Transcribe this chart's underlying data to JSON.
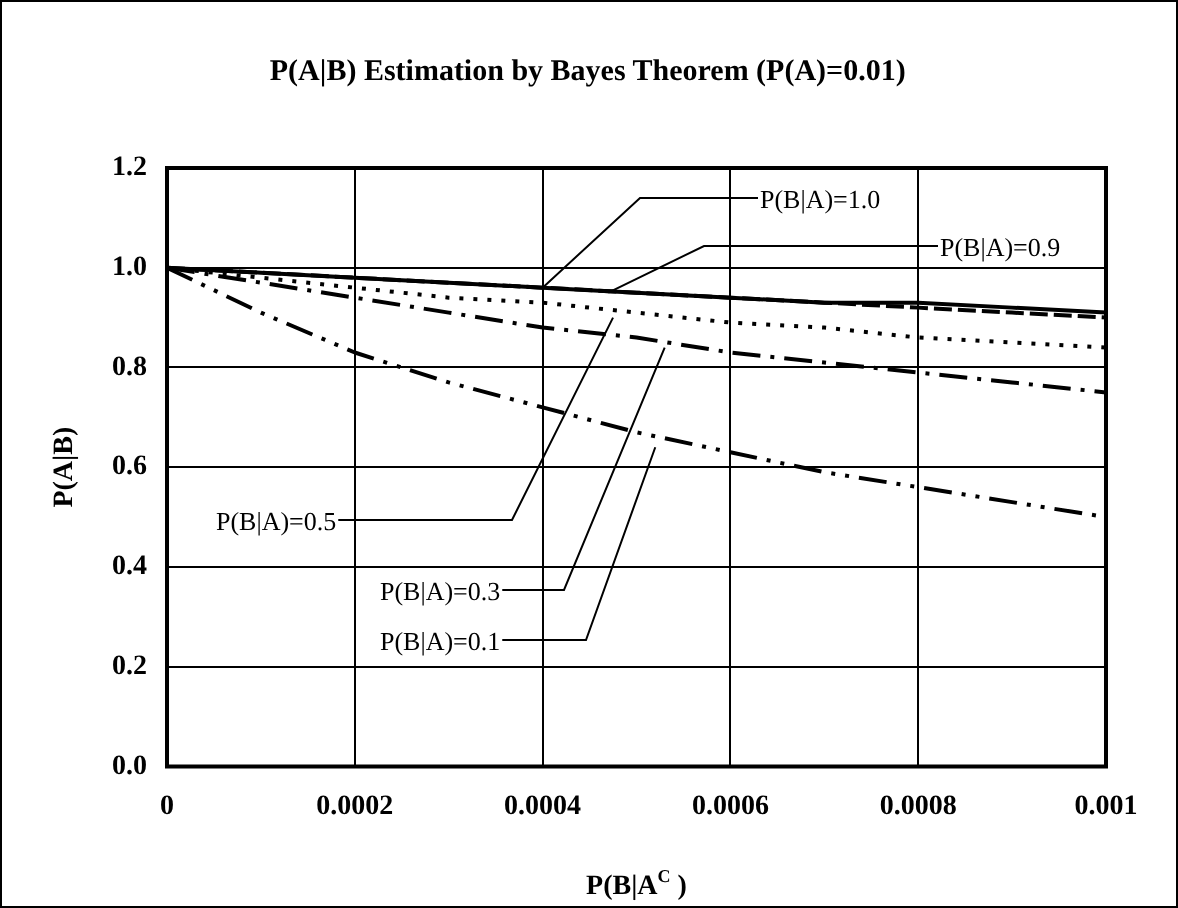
{
  "chart_data": {
    "type": "line",
    "title": "P(A|B) Estimation by Bayes Theorem (P(A)=0.01)",
    "xlabel": "P(B|A$^{C}$ )",
    "ylabel": "P(A|B)",
    "x": [
      0,
      0.0001,
      0.0002,
      0.0003,
      0.0004,
      0.0005,
      0.0006,
      0.0007,
      0.0008,
      0.0009,
      0.001
    ],
    "series": [
      {
        "color": "#000000",
        "line_style": "solid",
        "values": [
          1,
          0.99,
          0.98,
          0.97,
          0.96,
          0.95,
          0.94,
          0.93,
          0.93,
          0.92,
          0.91
        ]
      },
      {
        "color": "#000000",
        "line_style": "dashed",
        "values": [
          1,
          0.99,
          0.98,
          0.97,
          0.96,
          0.95,
          0.94,
          0.93,
          0.92,
          0.91,
          0.9
        ]
      },
      {
        "color": "#000000",
        "line_style": "dotted",
        "values": [
          1,
          0.98,
          0.96,
          0.94,
          0.93,
          0.91,
          0.89,
          0.88,
          0.86,
          0.85,
          0.84
        ]
      },
      {
        "color": "#000000",
        "line_style": "dashdot",
        "values": [
          1,
          0.97,
          0.94,
          0.91,
          0.88,
          0.86,
          0.83,
          0.81,
          0.79,
          0.77,
          0.75
        ]
      },
      {
        "color": "#000000",
        "line_style": "dashdotdot",
        "values": [
          1,
          0.91,
          0.83,
          0.77,
          0.72,
          0.67,
          0.63,
          0.59,
          0.56,
          0.53,
          0.5
        ]
      }
    ],
    "annotations": [
      {
        "text": "P(B|A)=1.0",
        "x": 0.0004,
        "y": 0.96
      },
      {
        "text": "P(B|A)=0.9",
        "x": 0.00047,
        "y": 0.95
      },
      {
        "text": "P(B|A)=0.5",
        "x": 0.000475,
        "y": 0.9
      },
      {
        "text": "P(B|A)=0.3",
        "x": 0.00053,
        "y": 0.84
      },
      {
        "text": "P(B|A)=0.1",
        "x": 0.00052,
        "y": 0.64
      }
    ],
    "xlim": [
      0,
      0.001
    ],
    "xticks": [
      0,
      0.0002,
      0.0004,
      0.0006,
      0.0008,
      0.001
    ],
    "ylim": [
      0,
      1.2
    ],
    "yticks": [
      {
        "value": 0,
        "label": "0.0"
      },
      {
        "value": 0.2,
        "label": "0.2"
      },
      {
        "value": 0.4,
        "label": "0.4"
      },
      {
        "value": 0.6,
        "label": "0.6"
      },
      {
        "value": 0.8,
        "label": "0.8"
      },
      {
        "value": 1,
        "label": "1.0"
      },
      {
        "value": 1.2,
        "label": "1.2"
      }
    ],
    "grid": true,
    "legend": false,
    "marker": "none"
  }
}
